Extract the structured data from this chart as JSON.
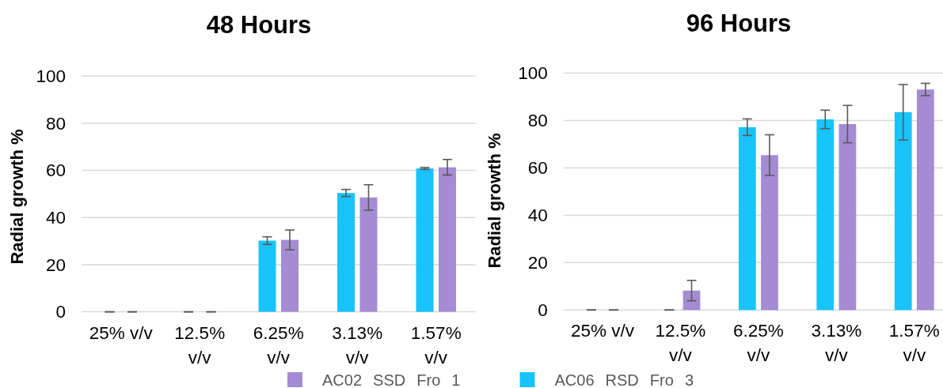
{
  "chart_data": [
    {
      "type": "bar",
      "title": "48 Hours",
      "ylabel": "Radial growth %",
      "categories": [
        "25% v/v",
        "12.5% v/v",
        "6.25% v/v",
        "3.13% v/v",
        "1.57% v/v"
      ],
      "series": [
        {
          "name": "AC06 RSD Fro 3",
          "color": "#19c3fb",
          "values": [
            0,
            0,
            30.2,
            50.4,
            60.8
          ],
          "errors": [
            0,
            0,
            1.6,
            1.5,
            0.4
          ]
        },
        {
          "name": "AC02 SSD Fro 1",
          "color": "#a48bd3",
          "values": [
            0,
            0,
            30.5,
            48.5,
            61.3
          ],
          "errors": [
            0,
            0,
            4.2,
            5.4,
            3.3
          ]
        }
      ],
      "ylim": [
        0,
        100
      ],
      "yticks": [
        0,
        20,
        40,
        60,
        80,
        100
      ],
      "grid": "y",
      "legend": "bottom"
    },
    {
      "type": "bar",
      "title": "96 Hours",
      "ylabel": "Radial growth %",
      "categories": [
        "25% v/v",
        "12.5% v/v",
        "6.25% v/v",
        "3.13% v/v",
        "1.57% v/v"
      ],
      "series": [
        {
          "name": "AC06 RSD Fro 3",
          "color": "#19c3fb",
          "values": [
            0,
            0,
            77.2,
            80.5,
            83.5
          ],
          "errors": [
            0,
            0,
            3.5,
            3.9,
            11.7
          ]
        },
        {
          "name": "AC02 SSD Fro 1",
          "color": "#a48bd3",
          "values": [
            0,
            8.2,
            65.4,
            78.5,
            93.1
          ],
          "errors": [
            0,
            4.3,
            8.6,
            7.9,
            2.6
          ]
        }
      ],
      "ylim": [
        0,
        100
      ],
      "yticks": [
        0,
        20,
        40,
        60,
        80,
        100
      ],
      "grid": "y"
    }
  ]
}
